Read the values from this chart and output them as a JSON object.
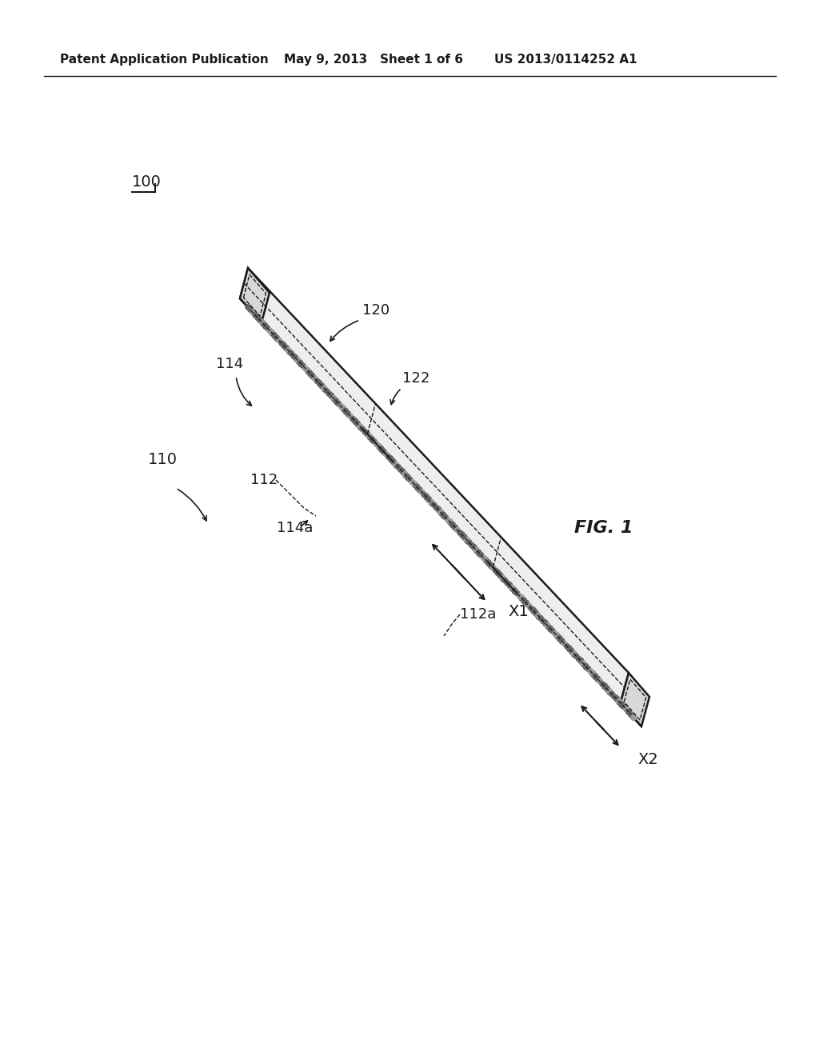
{
  "bg_color": "#ffffff",
  "header_left": "Patent Application Publication",
  "header_mid": "May 9, 2013   Sheet 1 of 6",
  "header_right": "US 2013/0114252 A1",
  "fig_label": "FIG. 1",
  "ref_100": "100",
  "ref_110": "110",
  "ref_112": "112",
  "ref_112a": "112a",
  "ref_114": "114",
  "ref_114a": "114a",
  "ref_120": "120",
  "ref_122": "122",
  "ref_x1": "X1",
  "ref_x2": "X2",
  "line_color": "#1a1a1a",
  "face_top": "#eeeeee",
  "face_front": "#f5f5f5",
  "face_end": "#d8d8d8",
  "dot_color": "#666666",
  "dot_color2": "#999999"
}
